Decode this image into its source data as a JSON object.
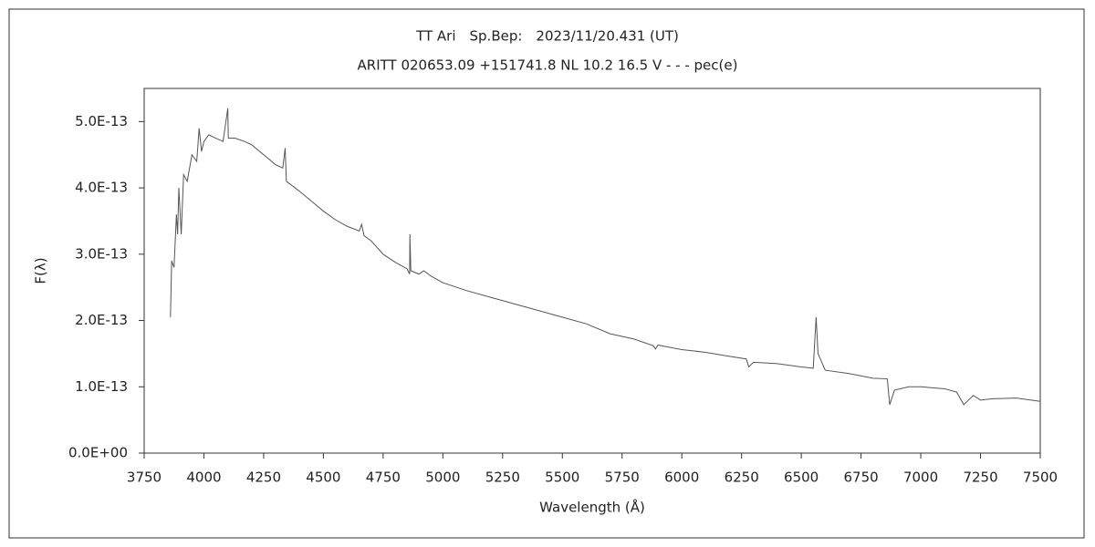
{
  "chart_data": {
    "type": "line",
    "title": "TT Ari　Sp.Bep:　2023/11/20.431 (UT)",
    "subtitle": "ARITT 020653.09 +151741.8 NL 10.2 16.5 V - - - pec(e)",
    "x_label": "Wavelength (Å)",
    "y_label": "F(λ)",
    "color": "#555555",
    "x": [
      3860,
      3865,
      3875,
      3885,
      3890,
      3895,
      3905,
      3915,
      3930,
      3950,
      3970,
      3980,
      3990,
      4000,
      4020,
      4050,
      4080,
      4100,
      4102,
      4130,
      4170,
      4200,
      4250,
      4300,
      4330,
      4340,
      4345,
      4400,
      4450,
      4500,
      4550,
      4600,
      4650,
      4660,
      4670,
      4700,
      4750,
      4800,
      4850,
      4861,
      4862,
      4866,
      4900,
      4920,
      4950,
      5000,
      5100,
      5200,
      5300,
      5400,
      5500,
      5600,
      5700,
      5800,
      5880,
      5890,
      5900,
      6000,
      6100,
      6200,
      6270,
      6280,
      6300,
      6400,
      6500,
      6550,
      6562,
      6570,
      6600,
      6700,
      6800,
      6860,
      6870,
      6890,
      6950,
      7000,
      7100,
      7150,
      7180,
      7200,
      7220,
      7250,
      7300,
      7400,
      7500
    ],
    "values": [
      2.05e-13,
      2.9e-13,
      2.8e-13,
      3.6e-13,
      3.3e-13,
      4e-13,
      3.3e-13,
      4.2e-13,
      4.1e-13,
      4.5e-13,
      4.4e-13,
      4.9e-13,
      4.55e-13,
      4.7e-13,
      4.8e-13,
      4.75e-13,
      4.7e-13,
      5.2e-13,
      4.75e-13,
      4.75e-13,
      4.7e-13,
      4.65e-13,
      4.5e-13,
      4.35e-13,
      4.3e-13,
      4.6e-13,
      4.1e-13,
      3.95e-13,
      3.8e-13,
      3.65e-13,
      3.52e-13,
      3.42e-13,
      3.35e-13,
      3.45e-13,
      3.28e-13,
      3.2e-13,
      3e-13,
      2.88e-13,
      2.78e-13,
      2.7e-13,
      3.3e-13,
      2.75e-13,
      2.7e-13,
      2.75e-13,
      2.67e-13,
      2.57e-13,
      2.45e-13,
      2.35e-13,
      2.25e-13,
      2.15e-13,
      2.05e-13,
      1.95e-13,
      1.8e-13,
      1.72e-13,
      1.62e-13,
      1.57e-13,
      1.63e-13,
      1.56e-13,
      1.52e-13,
      1.46e-13,
      1.42e-13,
      1.3e-13,
      1.37e-13,
      1.35e-13,
      1.3e-13,
      1.28e-13,
      2.05e-13,
      1.5e-13,
      1.25e-13,
      1.2e-13,
      1.13e-13,
      1.12e-13,
      7.3e-14,
      9.5e-14,
      1e-13,
      1e-13,
      9.7e-14,
      9.2e-14,
      7.3e-14,
      8e-14,
      8.7e-14,
      8e-14,
      8.2e-14,
      8.3e-14,
      7.8e-14
    ],
    "xlim": [
      3750,
      7500
    ],
    "xticks": [
      3750,
      4000,
      4250,
      4500,
      4750,
      5000,
      5250,
      5500,
      5750,
      6000,
      6250,
      6500,
      6750,
      7000,
      7250,
      7500
    ],
    "ylim": [
      0,
      5.5e-13
    ],
    "yticks": [
      {
        "value": 0,
        "label": "0.0E+00"
      },
      {
        "value": 1e-13,
        "label": "1.0E-13"
      },
      {
        "value": 2e-13,
        "label": "2.0E-13"
      },
      {
        "value": 3e-13,
        "label": "3.0E-13"
      },
      {
        "value": 4e-13,
        "label": "4.0E-13"
      },
      {
        "value": 5e-13,
        "label": "5.0E-13"
      }
    ]
  }
}
